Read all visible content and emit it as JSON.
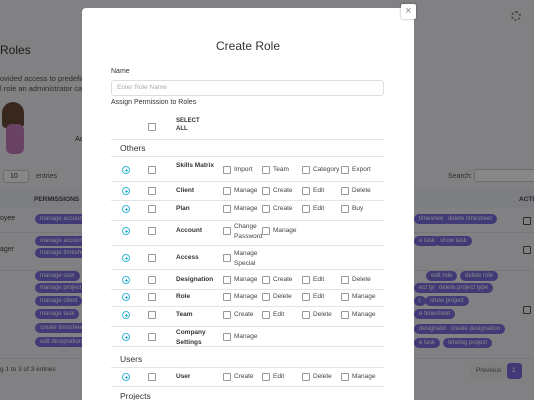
{
  "background": {
    "page_title": "Roles",
    "desc1": "ovided access to predefined",
    "desc2": "l role an administrator can h",
    "add": "Ad",
    "entries_count": "10",
    "entries": "entries",
    "search": "Search:",
    "col_permissions": "PERMISSIONS",
    "col_action": "ACTI",
    "role1": "oyee",
    "role2": "ager",
    "info": "g 1 to 3 of 3 entries",
    "previous": "Previous",
    "page": "1",
    "left_badges": [
      "manage account",
      "manage account",
      "manage timesheet",
      "manage user",
      "manage project c",
      "manage client",
      "manage task",
      "create timesheet",
      "edit designation"
    ],
    "right_badges": [
      "timesheet",
      "delete timesheet",
      "e task",
      "show task",
      "edit role",
      "delete role",
      "ect type",
      "delete project type",
      "t",
      "show project",
      "e timesheet",
      "designation",
      "create designation",
      "e task",
      "timelog project"
    ]
  },
  "modal": {
    "close": "×",
    "title": "Create Role",
    "name_label": "Name",
    "name_placeholder": "Enter Role Name",
    "assign_label": "Assign Permission to Roles",
    "select_all": "SELECT ALL",
    "sections": [
      {
        "title": "Others",
        "rows": [
          {
            "name": "Skills Matrix",
            "permissions": [
              "Import",
              "Team",
              "Category",
              "Export"
            ]
          },
          {
            "name": "Client",
            "permissions": [
              "Manage",
              "Create",
              "Edit",
              "Delete"
            ]
          },
          {
            "name": "Plan",
            "permissions": [
              "Manage",
              "Create",
              "Edit",
              "Buy"
            ]
          },
          {
            "name": "Account",
            "permissions": [
              "Change Password",
              "Manage"
            ]
          },
          {
            "name": "Access",
            "permissions": [
              "Manage Special"
            ]
          },
          {
            "name": "Designation",
            "permissions": [
              "Manage",
              "Create",
              "Edit",
              "Delete"
            ]
          },
          {
            "name": "Role",
            "permissions": [
              "Manage",
              "Delete",
              "Edit",
              "Manage"
            ]
          },
          {
            "name": "Team",
            "permissions": [
              "Create",
              "Edit",
              "Delete",
              "Manage"
            ]
          },
          {
            "name": "Company Settings",
            "permissions": [
              "Manage"
            ]
          }
        ]
      },
      {
        "title": "Users",
        "rows": [
          {
            "name": "User",
            "permissions": [
              "Create",
              "Edit",
              "Delete",
              "Manage"
            ]
          }
        ]
      },
      {
        "title": "Projects",
        "rows": []
      }
    ]
  }
}
